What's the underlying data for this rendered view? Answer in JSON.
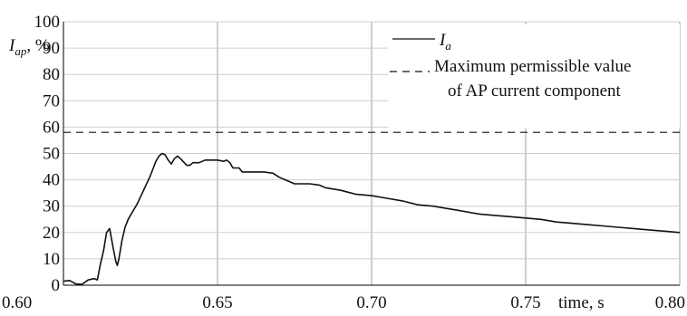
{
  "chart_data": {
    "type": "line",
    "ylabel_main": "I",
    "ylabel_sub": "ap",
    "ylabel_suffix": ", %",
    "xlabel": "time, s",
    "xlim": [
      0.6,
      0.8
    ],
    "ylim": [
      0,
      100
    ],
    "xticks": [
      "0.60",
      "0.65",
      "0.70",
      "0.75",
      "0.80"
    ],
    "yticks": [
      "0",
      "10",
      "20",
      "30",
      "40",
      "50",
      "60",
      "70",
      "80",
      "90",
      "100"
    ],
    "grid": true,
    "legend_position": "top-right",
    "colors": {
      "line": "#111111",
      "grid": "#cfcfcf",
      "axis": "#000000"
    },
    "legend": [
      {
        "main": "I",
        "sub": "a",
        "style": "solid"
      },
      {
        "line1": "Maximum permissible value",
        "line2": "of AP current component",
        "style": "dashed"
      }
    ],
    "series": [
      {
        "name": "Ia",
        "style": "solid",
        "points": [
          [
            0.6,
            1.5
          ],
          [
            0.602,
            1.8
          ],
          [
            0.604,
            0.5
          ],
          [
            0.606,
            0.3
          ],
          [
            0.608,
            2.0
          ],
          [
            0.61,
            2.5
          ],
          [
            0.611,
            2.0
          ],
          [
            0.612,
            8
          ],
          [
            0.613,
            13
          ],
          [
            0.614,
            20
          ],
          [
            0.615,
            21.5
          ],
          [
            0.616,
            15
          ],
          [
            0.617,
            9
          ],
          [
            0.6175,
            7.5
          ],
          [
            0.618,
            10
          ],
          [
            0.619,
            17
          ],
          [
            0.62,
            22
          ],
          [
            0.621,
            25
          ],
          [
            0.622,
            27
          ],
          [
            0.624,
            31
          ],
          [
            0.626,
            36
          ],
          [
            0.628,
            41
          ],
          [
            0.629,
            44
          ],
          [
            0.63,
            47
          ],
          [
            0.631,
            49
          ],
          [
            0.632,
            50
          ],
          [
            0.633,
            49.5
          ],
          [
            0.634,
            47.5
          ],
          [
            0.635,
            46
          ],
          [
            0.636,
            48
          ],
          [
            0.637,
            49
          ],
          [
            0.638,
            48
          ],
          [
            0.64,
            45.5
          ],
          [
            0.641,
            45.5
          ],
          [
            0.642,
            46.5
          ],
          [
            0.644,
            46.5
          ],
          [
            0.646,
            47.5
          ],
          [
            0.648,
            47.5
          ],
          [
            0.65,
            47.5
          ],
          [
            0.652,
            47.0
          ],
          [
            0.653,
            47.5
          ],
          [
            0.654,
            46.5
          ],
          [
            0.655,
            44.5
          ],
          [
            0.657,
            44.5
          ],
          [
            0.658,
            43
          ],
          [
            0.66,
            43
          ],
          [
            0.665,
            43
          ],
          [
            0.668,
            42.5
          ],
          [
            0.67,
            41
          ],
          [
            0.672,
            40
          ],
          [
            0.675,
            38.5
          ],
          [
            0.68,
            38.5
          ],
          [
            0.683,
            38
          ],
          [
            0.685,
            37
          ],
          [
            0.69,
            36
          ],
          [
            0.695,
            34.5
          ],
          [
            0.7,
            34
          ],
          [
            0.705,
            33
          ],
          [
            0.71,
            32
          ],
          [
            0.715,
            30.5
          ],
          [
            0.72,
            30
          ],
          [
            0.725,
            29
          ],
          [
            0.73,
            28
          ],
          [
            0.735,
            27
          ],
          [
            0.74,
            26.5
          ],
          [
            0.745,
            26
          ],
          [
            0.75,
            25.5
          ],
          [
            0.755,
            25
          ],
          [
            0.76,
            24
          ],
          [
            0.765,
            23.5
          ],
          [
            0.77,
            23
          ],
          [
            0.775,
            22.5
          ],
          [
            0.78,
            22
          ],
          [
            0.785,
            21.5
          ],
          [
            0.79,
            21
          ],
          [
            0.795,
            20.5
          ],
          [
            0.8,
            20
          ]
        ]
      },
      {
        "name": "Maximum permissible value of AP current component",
        "style": "dashed",
        "points": [
          [
            0.6,
            58
          ],
          [
            0.8,
            58
          ]
        ]
      }
    ]
  }
}
